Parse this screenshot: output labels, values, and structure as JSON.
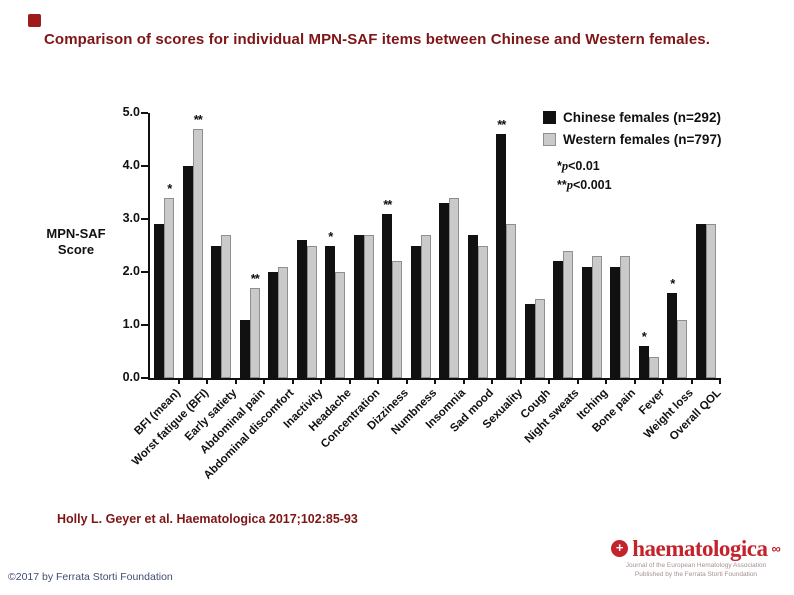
{
  "slide": {
    "title": "Comparison of scores for individual MPN-SAF items between Chinese and Western females.",
    "citation": "Holly L. Geyer et al. Haematologica 2017;102:85-93",
    "copyright": "©2017 by Ferrata Storti Foundation",
    "accent_color": "#7e1517"
  },
  "logo": {
    "wordmark": "haematologica",
    "tagline1": "Journal of the European Hematology Association",
    "tagline2": "Published by the Ferrata Storti Foundation",
    "color": "#c4232b",
    "icon": "red-cross-circle-icon",
    "emblem": "red-knot-icon"
  },
  "chart_data": {
    "type": "bar",
    "title": "",
    "xlabel": "",
    "ylabel_line1": "MPN-SAF",
    "ylabel_line2": "Score",
    "ylim": [
      0,
      5
    ],
    "yticks": [
      0,
      1,
      2,
      3,
      4,
      5
    ],
    "ytick_labels": [
      "0.0",
      "1.0",
      "2.0",
      "3.0",
      "4.0",
      "5.0"
    ],
    "grid": false,
    "legend_position": "upper right",
    "categories": [
      "BFI (mean)",
      "Worst fatigue (BFI)",
      "Early satiety",
      "Abdominal pain",
      "Abdominal discomfort",
      "Inactivity",
      "Headache",
      "Concentration",
      "Dizziness",
      "Numbness",
      "Insomnia",
      "Sad mood",
      "Sexuality",
      "Cough",
      "Night sweats",
      "Itching",
      "Bone pain",
      "Fever",
      "Weight loss",
      "Overall QOL"
    ],
    "series": [
      {
        "name": "Chinese females (n=292)",
        "color": "#111111",
        "values": [
          2.9,
          4.0,
          2.5,
          1.1,
          2.0,
          2.6,
          2.5,
          2.7,
          3.1,
          2.5,
          3.3,
          2.7,
          4.6,
          1.4,
          2.2,
          2.1,
          2.1,
          0.6,
          1.6,
          2.9
        ]
      },
      {
        "name": "Western females (n=797)",
        "color": "#cacaca",
        "values": [
          3.4,
          4.7,
          2.7,
          1.7,
          2.1,
          2.5,
          2.0,
          2.7,
          2.2,
          2.7,
          3.4,
          2.5,
          2.9,
          1.5,
          2.4,
          2.3,
          2.3,
          0.4,
          1.1,
          2.9
        ]
      }
    ],
    "significance": [
      {
        "category_index": 0,
        "series_index": 1,
        "marker": "*"
      },
      {
        "category_index": 1,
        "series_index": 1,
        "marker": "**"
      },
      {
        "category_index": 3,
        "series_index": 1,
        "marker": "**"
      },
      {
        "category_index": 6,
        "series_index": 0,
        "marker": "*"
      },
      {
        "category_index": 8,
        "series_index": 0,
        "marker": "**"
      },
      {
        "category_index": 12,
        "series_index": 0,
        "marker": "**"
      },
      {
        "category_index": 17,
        "series_index": 0,
        "marker": "*"
      },
      {
        "category_index": 18,
        "series_index": 0,
        "marker": "*"
      }
    ],
    "legend_notes": [
      {
        "stars": "*",
        "p": "p",
        "cond": "<0.01"
      },
      {
        "stars": "**",
        "p": "p",
        "cond": "<0.001"
      }
    ]
  }
}
